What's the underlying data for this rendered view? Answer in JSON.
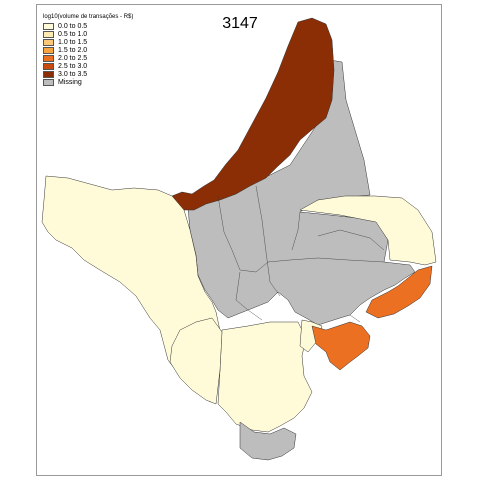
{
  "title": "3147",
  "legend": {
    "title": "log10(volume de transações - R$)",
    "entries": [
      {
        "label": "0.0 to 0.5",
        "color": "#fffbd9"
      },
      {
        "label": "0.5 to 1.0",
        "color": "#feeab0"
      },
      {
        "label": "1.0 to 1.5",
        "color": "#fdc877"
      },
      {
        "label": "1.5 to 2.0",
        "color": "#f8a441"
      },
      {
        "label": "2.0 to 2.5",
        "color": "#ec7022"
      },
      {
        "label": "2.5 to 3.0",
        "color": "#c94a0f"
      },
      {
        "label": "3.0 to 3.5",
        "color": "#8b2e05"
      },
      {
        "label": "Missing",
        "color": "#bdbdbd"
      }
    ]
  },
  "colors": {
    "frame": "#9a9a9a",
    "border": "#333333"
  }
}
